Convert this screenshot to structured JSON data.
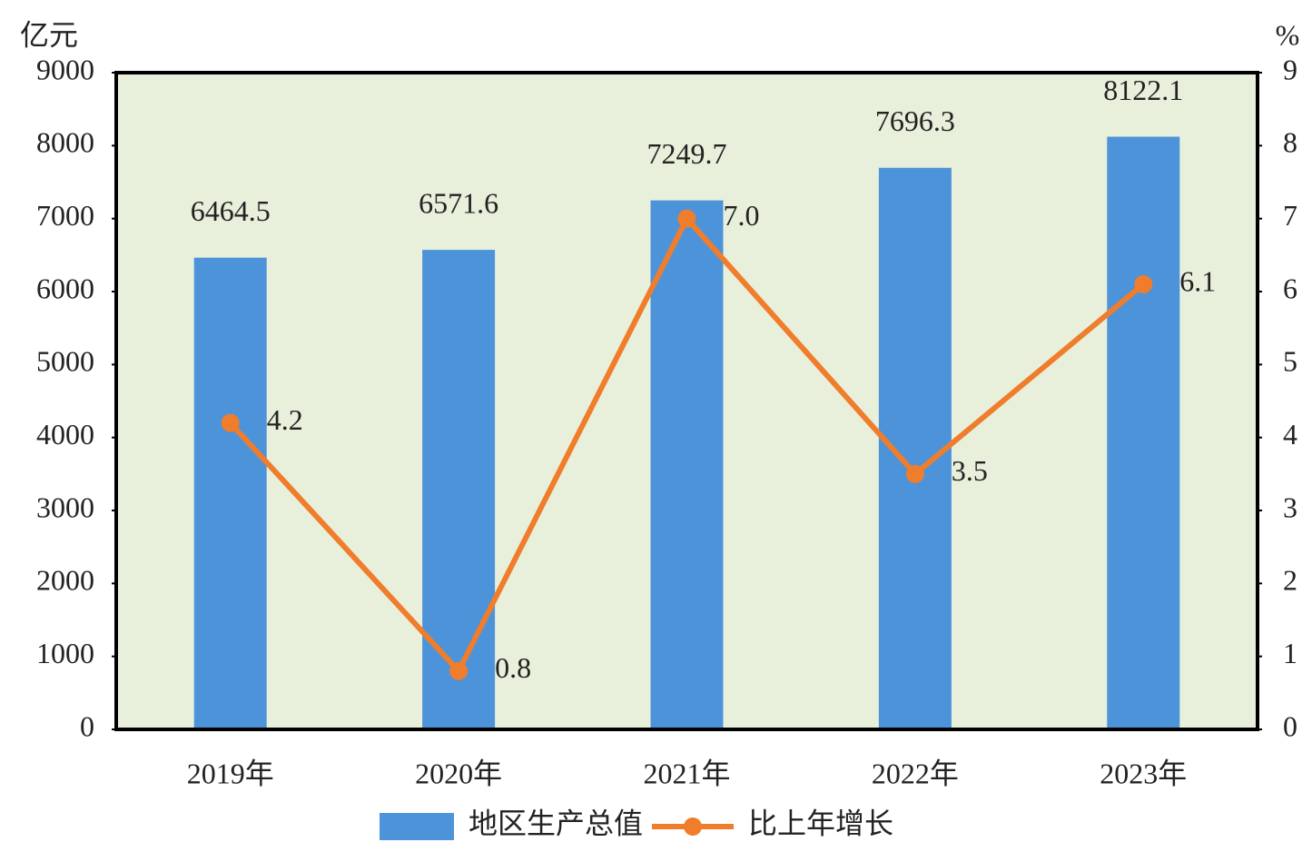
{
  "chart_data": {
    "type": "bar",
    "y_label": "亿元",
    "y2_label": "%",
    "categories": [
      "2019年",
      "2020年",
      "2021年",
      "2022年",
      "2023年"
    ],
    "series": [
      {
        "name": "地区生产总值",
        "type": "bar",
        "color": "#4d93d9",
        "values": [
          6464.5,
          6571.6,
          7249.7,
          7696.3,
          8122.1
        ]
      },
      {
        "name": "比上年增长",
        "type": "line",
        "axis": "y2",
        "color": "#f07d2b",
        "values": [
          4.2,
          0.8,
          7.0,
          3.5,
          6.1
        ],
        "value_labels": [
          "4.2",
          "0.8",
          "7.0",
          "3.5",
          "6.1"
        ]
      }
    ],
    "ylim": [
      0,
      9000
    ],
    "yticks": [
      0,
      1000,
      2000,
      3000,
      4000,
      5000,
      6000,
      7000,
      8000,
      9000
    ],
    "y2lim": [
      0,
      9
    ],
    "y2ticks": [
      0,
      1,
      2,
      3,
      4,
      5,
      6,
      7,
      8,
      9
    ],
    "grid": false,
    "legend": "bottom",
    "plot_background": "#e8f0dc"
  }
}
